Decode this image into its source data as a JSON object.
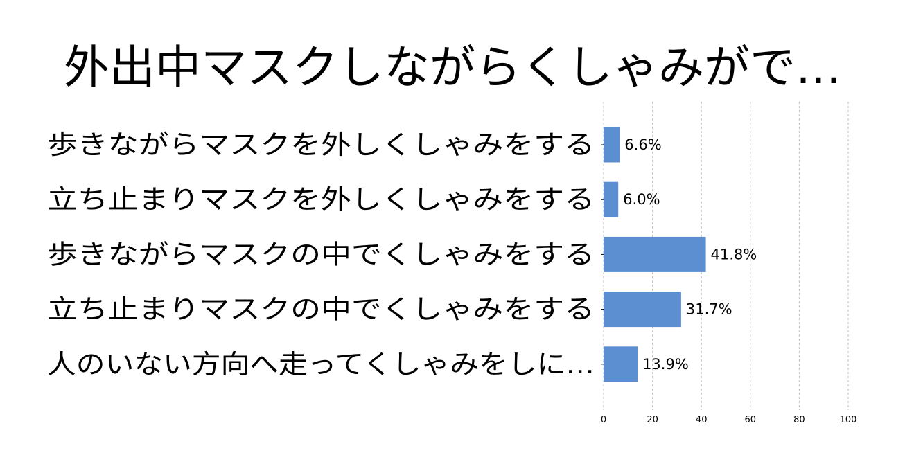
{
  "chart_data": {
    "type": "bar",
    "orientation": "horizontal",
    "title": "外出中マスクしながらくしゃみがで…",
    "categories": [
      "歩きながらマスクを外しくしゃみをする",
      "立ち止まりマスクを外しくしゃみをする",
      "歩きながらマスクの中でくしゃみをする",
      "立ち止まりマスクの中でくしゃみをする",
      "人のいない方向へ走ってくしゃみをしに…"
    ],
    "values": [
      6.6,
      6.0,
      41.8,
      31.7,
      13.9
    ],
    "value_labels": [
      "6.6%",
      "6.0%",
      "41.8%",
      "31.7%",
      "13.9%"
    ],
    "xlim": [
      0,
      100
    ],
    "x_ticks": [
      "0",
      "20",
      "40",
      "60",
      "80",
      "100"
    ],
    "grid": true,
    "bar_color": "#5b8fd2",
    "xlabel": "",
    "ylabel": ""
  }
}
